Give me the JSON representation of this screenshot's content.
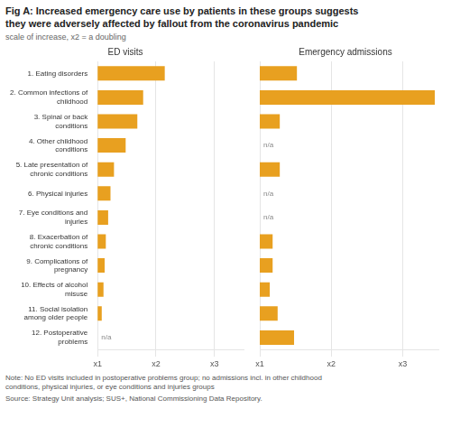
{
  "title": [
    "Fig A: Increased emergency care use by patients in these groups suggests",
    "they were adversely affected by fallout from the coronavirus pandemic"
  ],
  "subtitle": "scale of increase, x2 = a doubling",
  "note": "Note: No ED visits included in postoperative problems group; no admissions incl. in other childhood\nconditions, physical injuries, or eye conditions and injuries groups",
  "source": "Source: Strategy Unit analysis; SUS+, National Commissioning Data Repository.",
  "chart_data": [
    {
      "type": "bar",
      "orientation": "horizontal",
      "title": "ED visits",
      "categories": [
        "1. Eating disorders",
        "2. Common infections of\nchildhood",
        "3. Spinal or back\nconditions",
        "4. Other childhood\nconditions",
        "5. Late presentation of\nchronic conditions",
        "6. Physical injuries",
        "7. Eye conditions and\ninjuries",
        "8. Exacerbation of\nchronic conditions",
        "9. Complications of\npregnancy",
        "10. Effects of alcohol\nmisuse",
        "11. Social isolation\namong older people",
        "12. Postoperative\nproblems"
      ],
      "values": [
        2.15,
        1.78,
        1.68,
        1.48,
        1.28,
        1.22,
        1.18,
        1.14,
        1.12,
        1.1,
        1.07,
        null
      ],
      "color": "#E8A020",
      "xlim": [
        1,
        3.5
      ],
      "xticks": [
        {
          "value": 1,
          "label": "x1"
        },
        {
          "value": 2,
          "label": "x2"
        },
        {
          "value": 3,
          "label": "x3"
        }
      ],
      "grid": true,
      "annotations": [
        {
          "text": "n/a",
          "category": "12. Postoperative\nproblems"
        }
      ]
    },
    {
      "type": "bar",
      "orientation": "horizontal",
      "title": "Emergency admissions",
      "categories": [
        "1. Eating disorders",
        "2. Common infections of\nchildhood",
        "3. Spinal or back\nconditions",
        "4. Other childhood\nconditions",
        "5. Late presentation of\nchronic conditions",
        "6. Physical injuries",
        "7. Eye conditions and\ninjuries",
        "8. Exacerbation of\nchronic conditions",
        "9. Complications of\npregnancy",
        "10. Effects of alcohol\nmisuse",
        "11. Social isolation\namong older people",
        "12. Postoperative\nproblems"
      ],
      "values": [
        1.52,
        3.45,
        1.28,
        null,
        1.28,
        null,
        null,
        1.18,
        1.18,
        1.14,
        1.25,
        1.48
      ],
      "color": "#E8A020",
      "xlim": [
        1,
        3.5
      ],
      "xticks": [
        {
          "value": 1,
          "label": "x1"
        },
        {
          "value": 2,
          "label": "x2"
        },
        {
          "value": 3,
          "label": "x3"
        }
      ],
      "grid": true,
      "tick_labels": "x",
      "annotations": [
        {
          "text": "n/a",
          "category": "4. Other childhood\nconditions"
        },
        {
          "text": "n/a",
          "category": "6. Physical injuries"
        },
        {
          "text": "n/a",
          "category": "7. Eye conditions and\ninjuries"
        }
      ]
    }
  ]
}
